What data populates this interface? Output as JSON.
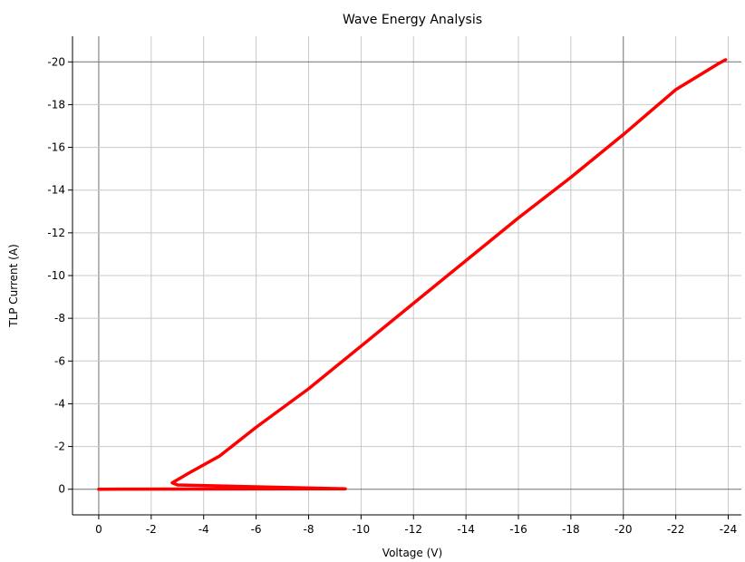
{
  "chart_data": {
    "type": "line",
    "title": "Wave Energy Analysis",
    "xlabel": "Voltage (V)",
    "ylabel": "TLP Current (A)",
    "x_reversed": true,
    "y_reversed": true,
    "xlim": [
      1,
      -24.5
    ],
    "ylim": [
      1.2,
      -21.2
    ],
    "x_ticks": [
      0,
      -2,
      -4,
      -6,
      -8,
      -10,
      -12,
      -14,
      -16,
      -18,
      -20,
      -22,
      -24
    ],
    "y_ticks": [
      0,
      -2,
      -4,
      -6,
      -8,
      -10,
      -12,
      -14,
      -16,
      -18,
      -20
    ],
    "x_tick_labels": [
      "0",
      "-2",
      "-4",
      "-6",
      "-8",
      "-10",
      "-12",
      "-14",
      "-16",
      "-18",
      "-20",
      "-22",
      "-24"
    ],
    "y_tick_labels": [
      "0",
      "-2",
      "-4",
      "-6",
      "-8",
      "-10",
      "-12",
      "-14",
      "-16",
      "-18",
      "-20"
    ],
    "major_grid_x": [
      0,
      -20
    ],
    "major_grid_y": [
      0,
      -20
    ],
    "grid": true,
    "series": [
      {
        "color": "#ff0000",
        "x": [
          0,
          -9.4,
          -3.0,
          -2.8,
          -3.5,
          -4.6,
          -6.0,
          -8.0,
          -10.0,
          -12.0,
          -14.0,
          -16.0,
          -18.0,
          -20.0,
          -22.0,
          -23.6,
          -23.9
        ],
        "y": [
          0,
          -0.02,
          -0.2,
          -0.3,
          -0.8,
          -1.55,
          -2.9,
          -4.7,
          -6.7,
          -8.7,
          -10.7,
          -12.7,
          -14.6,
          -16.6,
          -18.7,
          -19.9,
          -20.1
        ]
      }
    ]
  }
}
